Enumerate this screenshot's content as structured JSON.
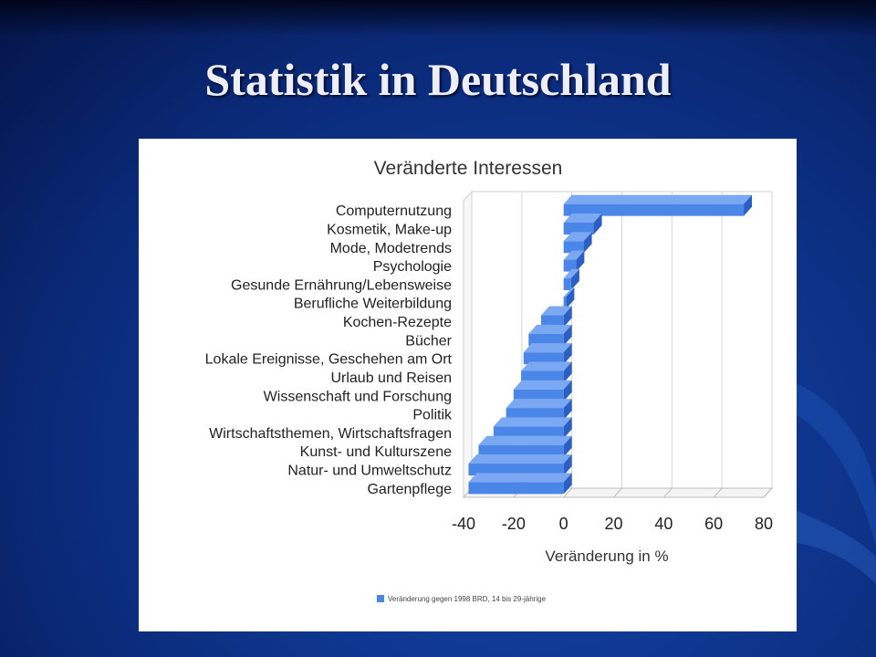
{
  "slide": {
    "title": "Statistik in Deutschland"
  },
  "colors": {
    "bar_front": "#4a86e8",
    "bar_top": "#7aa8f2",
    "bar_side": "#2c5fc4",
    "slide_background": "#0f3791"
  },
  "chart_data": {
    "type": "bar",
    "orientation": "horizontal",
    "title": "Veränderte Interessen",
    "xlabel": "Veränderung in %",
    "ylabel": "",
    "xlim": [
      -40,
      80
    ],
    "xticks": [
      -40,
      -20,
      0,
      20,
      40,
      60,
      80
    ],
    "grid": true,
    "legend_position": "bottom",
    "categories": [
      "Computernutzung",
      "Kosmetik, Make-up",
      "Mode, Modetrends",
      "Psychologie",
      "Gesunde Ernährung/Lebensweise",
      "Berufliche Weiterbildung",
      "Kochen-Rezepte",
      "Bücher",
      "Lokale Ereignisse, Geschehen am Ort",
      "Urlaub und Reisen",
      "Wissenschaft und Forschung",
      "Politik",
      "Wirtschaftsthemen, Wirtschaftsfragen",
      "Kunst- und Kulturszene",
      "Natur- und Umweltschutz",
      "Gartenpflege"
    ],
    "series": [
      {
        "name": "Veränderung gegen 1998 BRD, 14 bis 29-jährige",
        "values": [
          72,
          12,
          8,
          5,
          3,
          1,
          -9,
          -14,
          -16,
          -17,
          -20,
          -23,
          -28,
          -34,
          -38,
          -38
        ]
      }
    ]
  }
}
